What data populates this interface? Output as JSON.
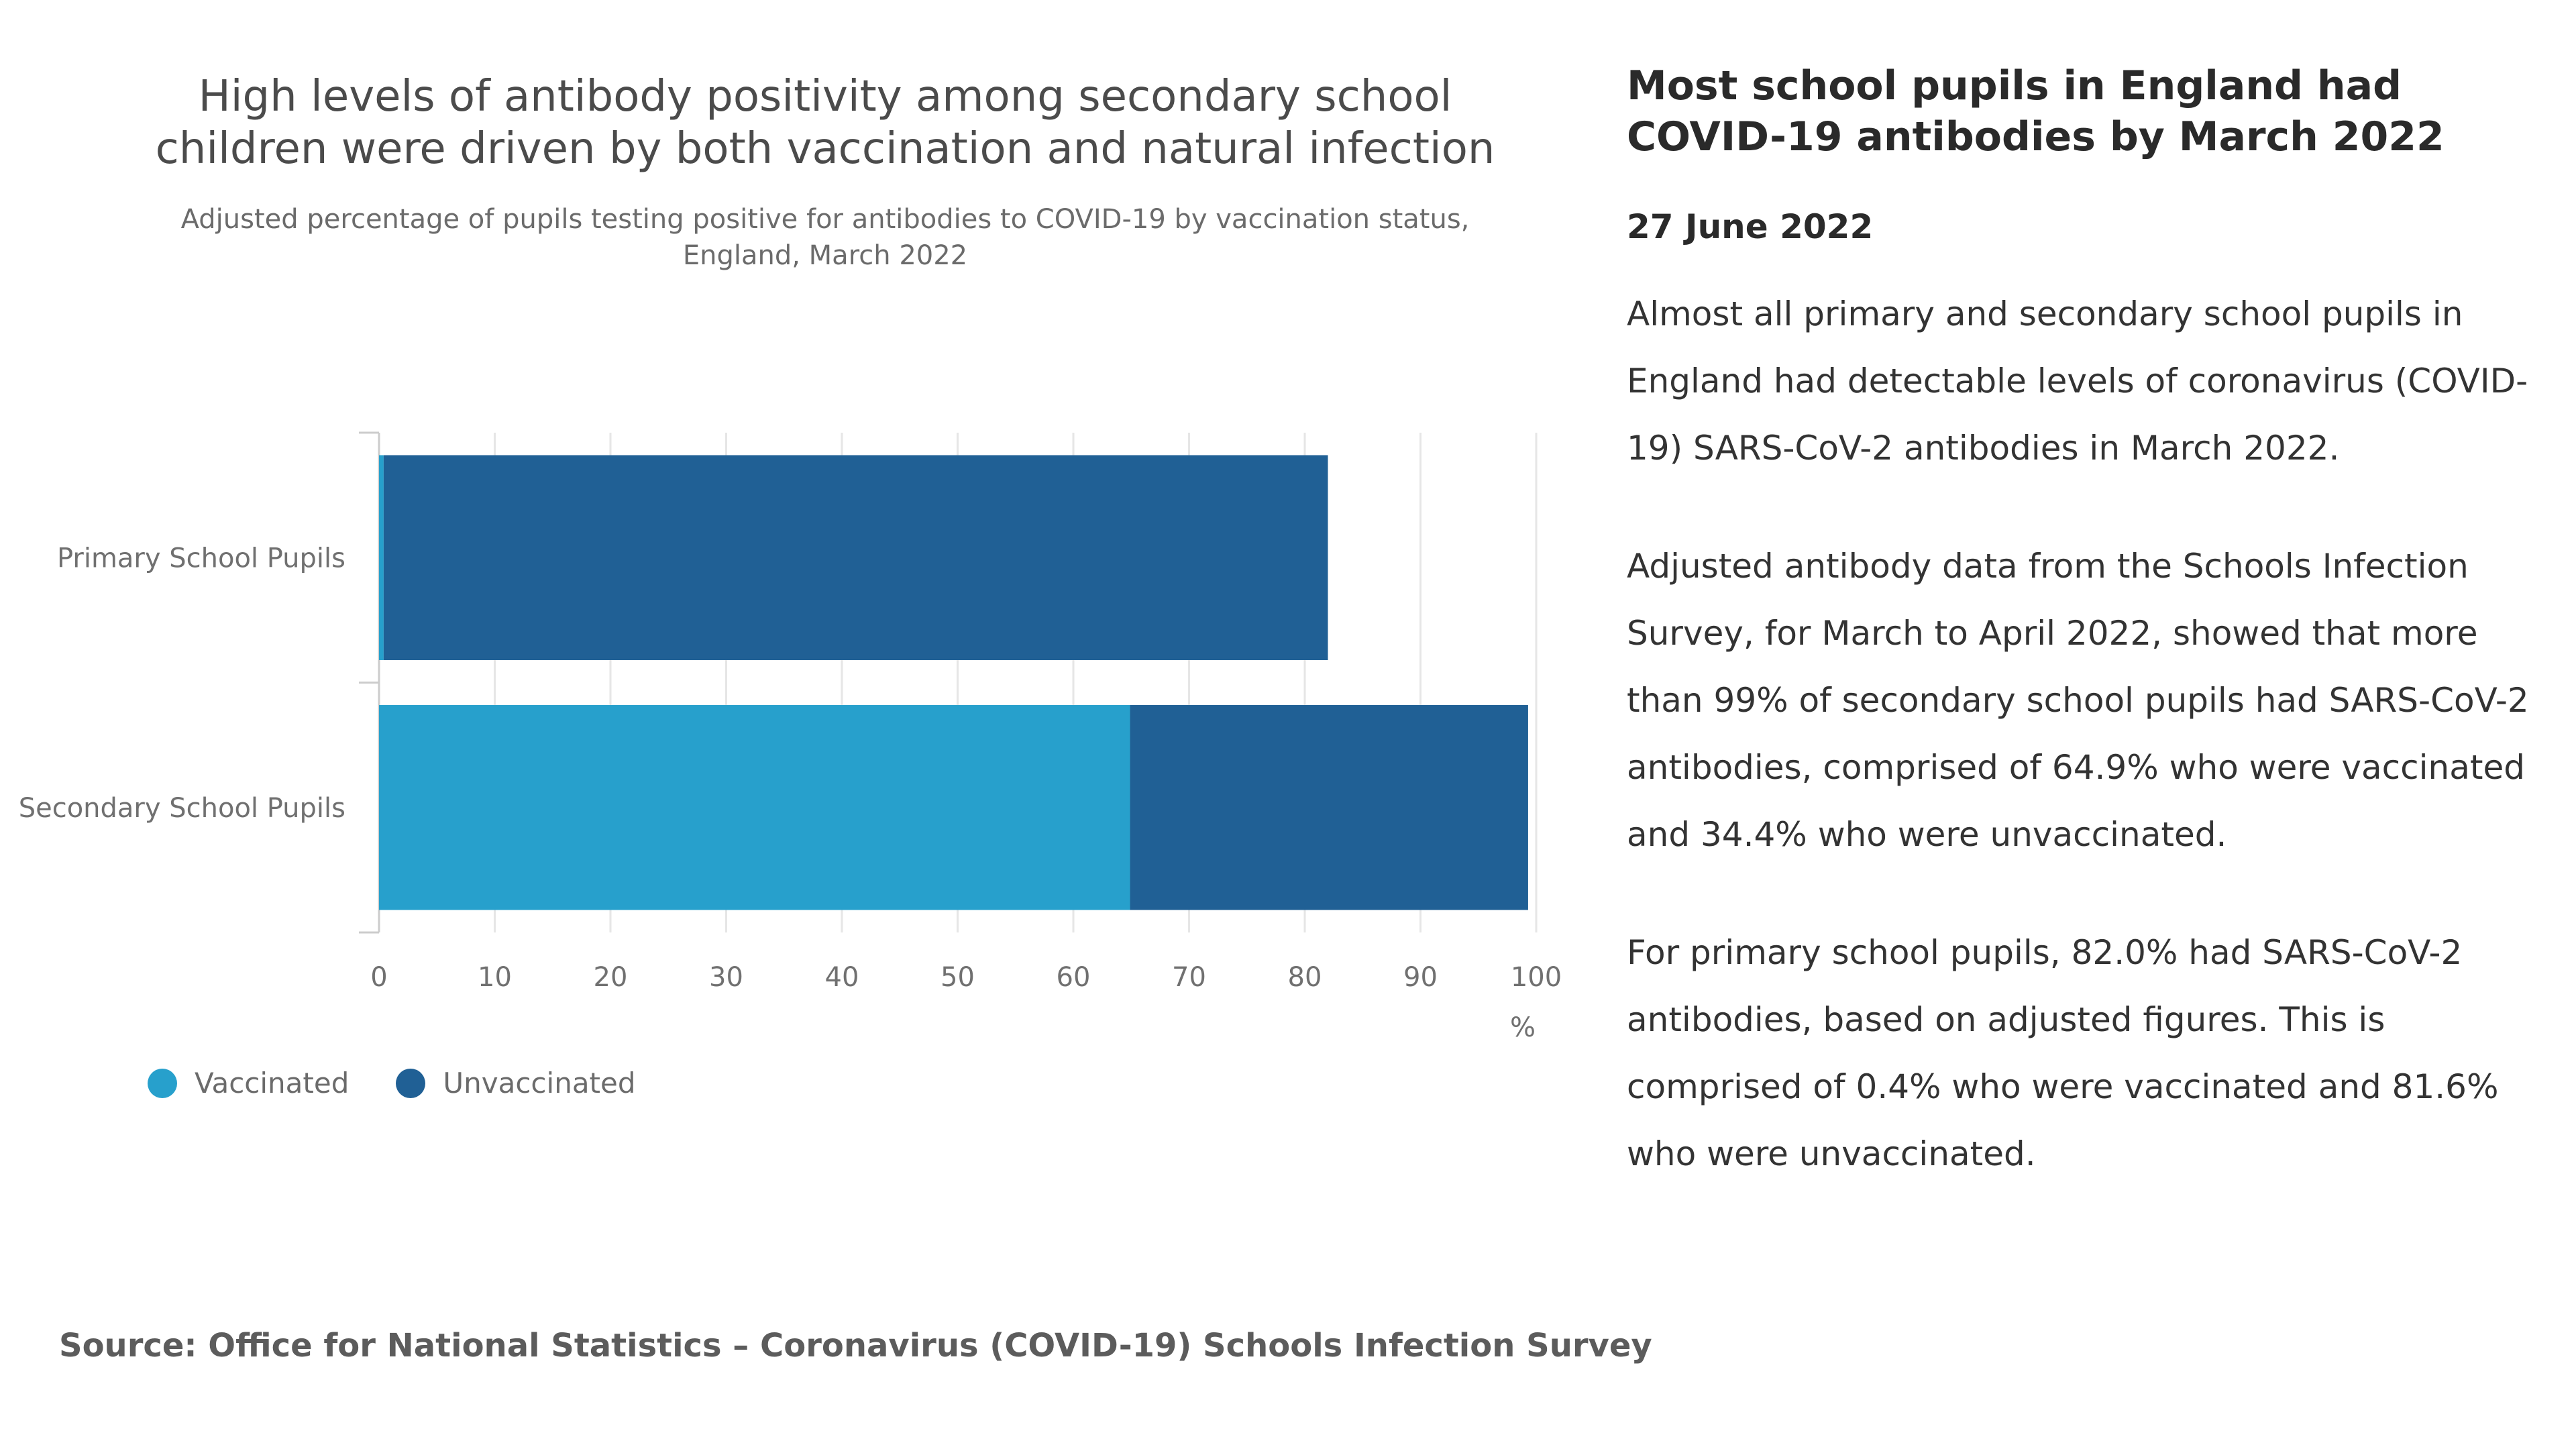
{
  "chart_data": {
    "type": "bar",
    "orientation": "horizontal",
    "stacked": true,
    "title": "High levels of antibody positivity among secondary school children were driven by both vaccination and natural infection",
    "subtitle": "Adjusted percentage of pupils testing positive for antibodies to COVID-19 by vaccination status, England, March 2022",
    "categories": [
      "Primary School Pupils",
      "Secondary School Pupils"
    ],
    "series": [
      {
        "name": "Vaccinated",
        "color": "#27a0cc",
        "values": [
          0.4,
          64.9
        ]
      },
      {
        "name": "Unvaccinated",
        "color": "#206095",
        "values": [
          81.6,
          34.4
        ]
      }
    ],
    "xlim": [
      0,
      100
    ],
    "xticks": [
      "0",
      "10",
      "20",
      "30",
      "40",
      "50",
      "60",
      "70",
      "80",
      "90",
      "100"
    ],
    "xunit": "%",
    "grid": true,
    "legend_position": "bottom-left",
    "source": "Source: Office for National Statistics – Coronavirus (COVID-19) Schools Infection Survey"
  },
  "article": {
    "heading": "Most school pupils in England had COVID-19 antibodies by March 2022",
    "date": "27 June 2022",
    "paragraphs": [
      "Almost all primary and secondary school pupils in England had detectable levels of coronavirus (COVID-19) SARS-CoV-2 antibodies in March 2022.",
      "Adjusted antibody data from the Schools Infection Survey, for March to April 2022, showed that more than 99% of secondary school pupils had SARS-CoV-2 antibodies, comprised of 64.9% who were vaccinated and 34.4% who were unvaccinated.",
      "For primary school pupils, 82.0% had SARS-CoV-2 antibodies, based on adjusted figures. This is comprised of 0.4% who were vaccinated and 81.6% who were unvaccinated."
    ]
  }
}
